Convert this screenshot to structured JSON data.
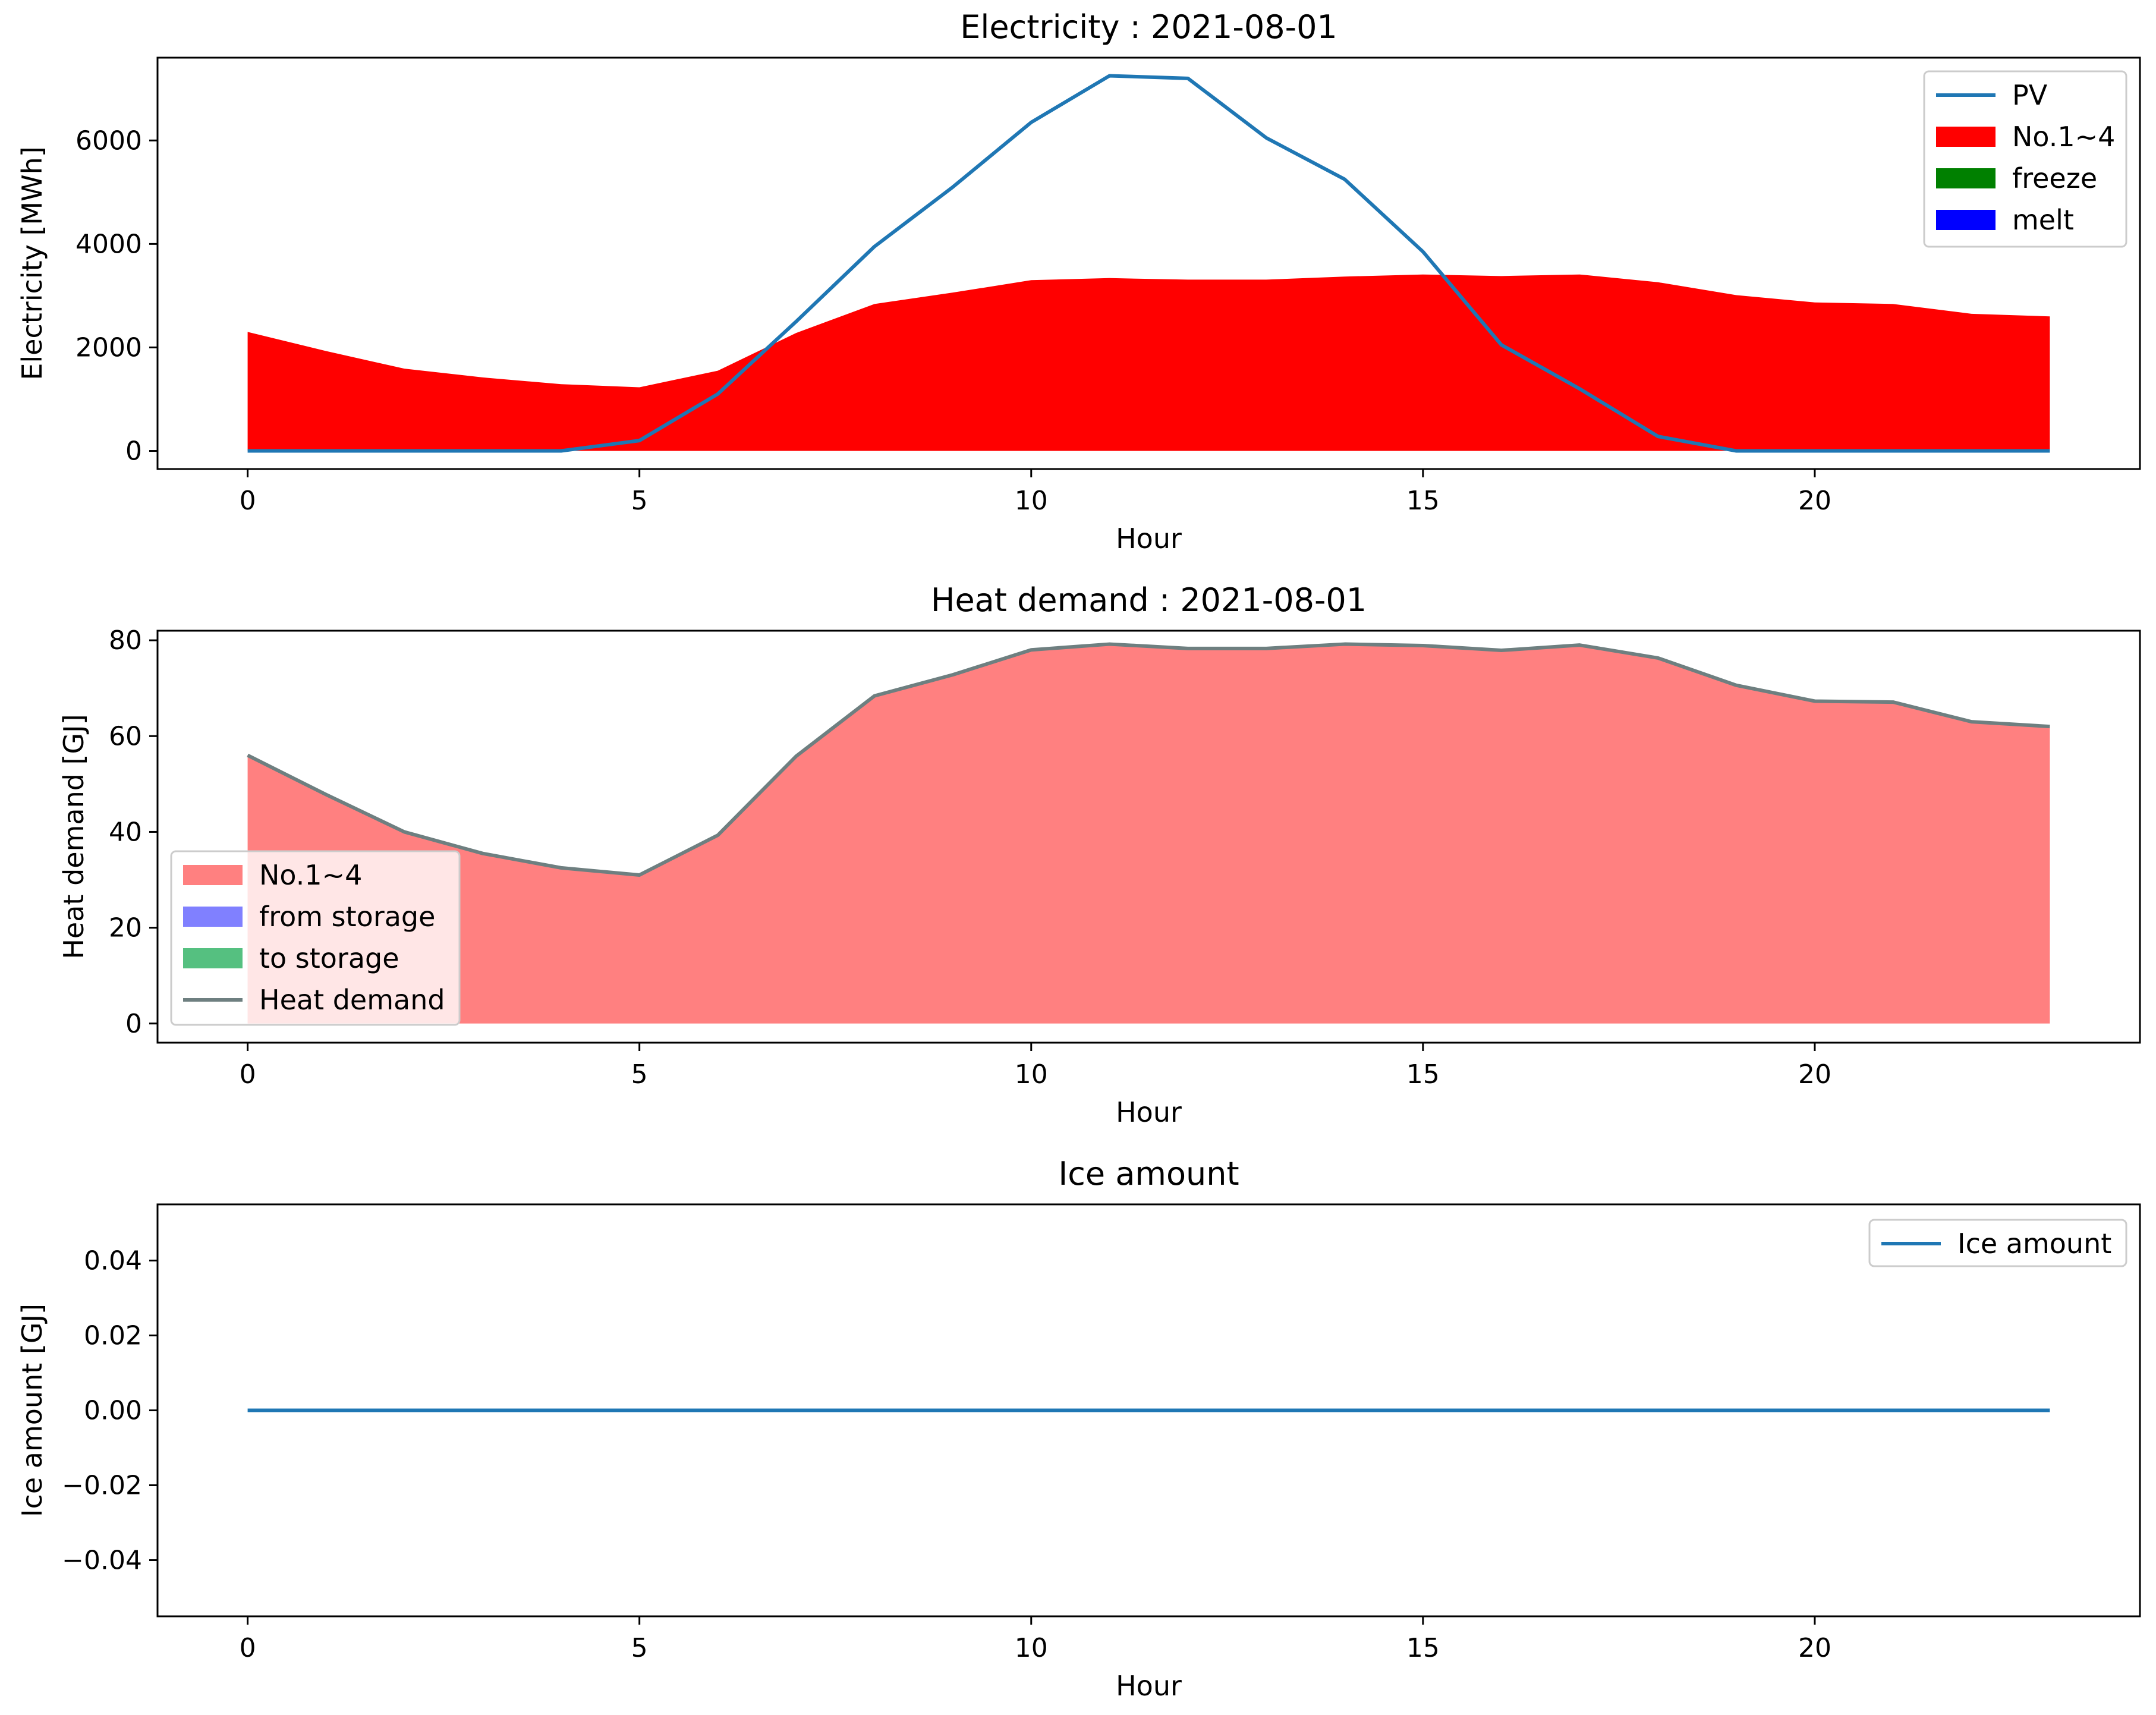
{
  "chart_data": [
    {
      "type": "area",
      "title": "Electricity : 2021-08-01",
      "xlabel": "Hour",
      "ylabel": "Electricity [MWh]",
      "xlim": [
        -1.15,
        24.15
      ],
      "ylim": [
        -350,
        7600
      ],
      "xticks": [
        0,
        5,
        10,
        15,
        20
      ],
      "xtick_labels": [
        "0",
        "5",
        "10",
        "15",
        "20"
      ],
      "yticks": [
        0,
        2000,
        4000,
        6000
      ],
      "ytick_labels": [
        "0",
        "2000",
        "4000",
        "6000"
      ],
      "legend_position": "top-right",
      "x": [
        0,
        1,
        2,
        3,
        4,
        5,
        6,
        7,
        8,
        9,
        10,
        11,
        12,
        13,
        14,
        15,
        16,
        17,
        18,
        19,
        20,
        21,
        22,
        23
      ],
      "series": [
        {
          "name": "PV",
          "kind": "line",
          "color": "#1f77b4",
          "values": [
            0,
            0,
            0,
            0,
            0,
            200,
            1100,
            2500,
            3950,
            5100,
            6350,
            7250,
            7200,
            6050,
            5250,
            3850,
            2050,
            1200,
            280,
            0,
            0,
            0,
            0,
            0
          ]
        },
        {
          "name": "No.1~4",
          "kind": "area",
          "color": "#ff0000",
          "values": [
            2300,
            1930,
            1590,
            1420,
            1290,
            1230,
            1550,
            2280,
            2840,
            3060,
            3300,
            3340,
            3310,
            3310,
            3370,
            3410,
            3380,
            3410,
            3260,
            3010,
            2870,
            2840,
            2650,
            2600
          ]
        },
        {
          "name": "freeze",
          "kind": "area",
          "color": "#008000",
          "values": [
            0,
            0,
            0,
            0,
            0,
            0,
            0,
            0,
            0,
            0,
            0,
            0,
            0,
            0,
            0,
            0,
            0,
            0,
            0,
            0,
            0,
            0,
            0,
            0
          ]
        },
        {
          "name": "melt",
          "kind": "area",
          "color": "#0000ff",
          "values": [
            0,
            0,
            0,
            0,
            0,
            0,
            0,
            0,
            0,
            0,
            0,
            0,
            0,
            0,
            0,
            0,
            0,
            0,
            0,
            0,
            0,
            0,
            0,
            0
          ]
        }
      ]
    },
    {
      "type": "area",
      "title": "Heat demand : 2021-08-01",
      "xlabel": "Hour",
      "ylabel": "Heat demand [GJ]",
      "xlim": [
        -1.15,
        24.15
      ],
      "ylim": [
        -4,
        82
      ],
      "xticks": [
        0,
        5,
        10,
        15,
        20
      ],
      "xtick_labels": [
        "0",
        "5",
        "10",
        "15",
        "20"
      ],
      "yticks": [
        0,
        20,
        40,
        60,
        80
      ],
      "ytick_labels": [
        "0",
        "20",
        "40",
        "60",
        "80"
      ],
      "legend_position": "bottom-left",
      "x": [
        0,
        1,
        2,
        3,
        4,
        5,
        6,
        7,
        8,
        9,
        10,
        11,
        12,
        13,
        14,
        15,
        16,
        17,
        18,
        19,
        20,
        21,
        22,
        23
      ],
      "series": [
        {
          "name": "No.1~4",
          "kind": "area",
          "color": "#ff8080",
          "values": [
            56,
            47.8,
            40,
            35.5,
            32.5,
            31,
            39.3,
            55.8,
            68.4,
            72.8,
            78,
            79.2,
            78.3,
            78.3,
            79.2,
            78.9,
            77.9,
            79,
            76.3,
            70.6,
            67.3,
            67.1,
            63,
            62
          ]
        },
        {
          "name": "from storage",
          "kind": "area",
          "color": "#8080ff",
          "values": [
            0,
            0,
            0,
            0,
            0,
            0,
            0,
            0,
            0,
            0,
            0,
            0,
            0,
            0,
            0,
            0,
            0,
            0,
            0,
            0,
            0,
            0,
            0,
            0
          ]
        },
        {
          "name": "to storage",
          "kind": "area",
          "color": "#55c080",
          "values": [
            0,
            0,
            0,
            0,
            0,
            0,
            0,
            0,
            0,
            0,
            0,
            0,
            0,
            0,
            0,
            0,
            0,
            0,
            0,
            0,
            0,
            0,
            0,
            0
          ]
        },
        {
          "name": "Heat demand",
          "kind": "line",
          "color": "#6e7f80",
          "values": [
            56,
            47.8,
            40,
            35.5,
            32.5,
            31,
            39.3,
            55.8,
            68.4,
            72.8,
            78,
            79.2,
            78.3,
            78.3,
            79.2,
            78.9,
            77.9,
            79,
            76.3,
            70.6,
            67.3,
            67.1,
            63,
            62
          ]
        }
      ]
    },
    {
      "type": "line",
      "title": "Ice amount",
      "xlabel": "Hour",
      "ylabel": "Ice amount [GJ]",
      "xlim": [
        -1.15,
        24.15
      ],
      "ylim": [
        -0.055,
        0.055
      ],
      "xticks": [
        0,
        5,
        10,
        15,
        20
      ],
      "xtick_labels": [
        "0",
        "5",
        "10",
        "15",
        "20"
      ],
      "yticks": [
        -0.04,
        -0.02,
        0.0,
        0.02,
        0.04
      ],
      "ytick_labels": [
        "−0.04",
        "−0.02",
        "0.00",
        "0.02",
        "0.04"
      ],
      "legend_position": "top-right",
      "x": [
        0,
        1,
        2,
        3,
        4,
        5,
        6,
        7,
        8,
        9,
        10,
        11,
        12,
        13,
        14,
        15,
        16,
        17,
        18,
        19,
        20,
        21,
        22,
        23
      ],
      "series": [
        {
          "name": "Ice amount",
          "kind": "line",
          "color": "#1f77b4",
          "values": [
            0,
            0,
            0,
            0,
            0,
            0,
            0,
            0,
            0,
            0,
            0,
            0,
            0,
            0,
            0,
            0,
            0,
            0,
            0,
            0,
            0,
            0,
            0,
            0
          ]
        }
      ]
    }
  ]
}
